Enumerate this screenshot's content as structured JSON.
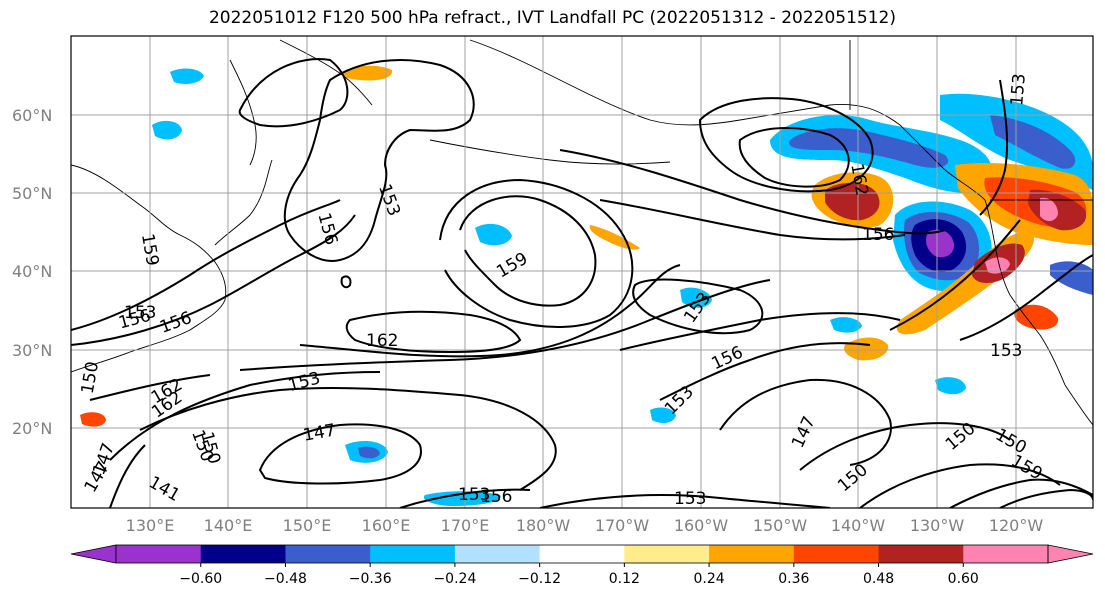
{
  "title": "2022051012 F120 500 hPa refract., IVT Landfall PC (2022051312 - 2022051512)",
  "map": {
    "lat_ticks": [
      "20°N",
      "30°N",
      "40°N",
      "50°N",
      "60°N"
    ],
    "lon_ticks": [
      "130°E",
      "140°E",
      "150°E",
      "160°E",
      "170°E",
      "180°W",
      "170°W",
      "160°W",
      "150°W",
      "140°W",
      "130°W",
      "120°W"
    ],
    "contour_labels": [
      "153",
      "156",
      "159",
      "162",
      "147",
      "150",
      "153",
      "156",
      "162",
      "153",
      "156",
      "147",
      "150",
      "153",
      "150",
      "156",
      "153",
      "162",
      "159",
      "153",
      "150",
      "159",
      "153",
      "156",
      "153",
      "162",
      "147",
      "150",
      "141",
      "147",
      "156",
      "150",
      "153"
    ]
  },
  "colorbar": {
    "tick_labels": [
      "−0.60",
      "−0.48",
      "−0.36",
      "−0.24",
      "−0.12",
      "0.12",
      "0.24",
      "0.36",
      "0.48",
      "0.60"
    ],
    "colors": [
      "#9a32cd",
      "#00008b",
      "#3a5fcd",
      "#00bfff",
      "#b2e0ff",
      "#ffffff",
      "#ffec8b",
      "#ffa500",
      "#ff4500",
      "#b22222",
      "#ff83b0"
    ]
  }
}
